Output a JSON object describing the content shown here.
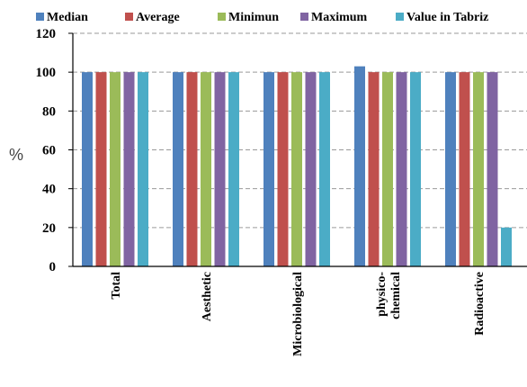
{
  "chart_data": {
    "type": "bar",
    "title": "",
    "ylabel": "%",
    "xlabel": "",
    "ylim": [
      0,
      120
    ],
    "yticks": [
      0,
      20,
      40,
      60,
      80,
      100,
      120
    ],
    "grid": true,
    "legend_position": "top",
    "categories": [
      "Total",
      "Aesthetic",
      "Microbiological",
      [
        "physico-",
        "chemical"
      ],
      "Radioactive"
    ],
    "series": [
      {
        "name": "Median",
        "color": "#4f81bd",
        "values": [
          100,
          100,
          100,
          103,
          100
        ]
      },
      {
        "name": "Average",
        "color": "#c0504d",
        "values": [
          100,
          100,
          100,
          100,
          100
        ]
      },
      {
        "name": "Minimun",
        "color": "#9bbb59",
        "values": [
          100,
          100,
          100,
          100,
          100
        ]
      },
      {
        "name": "Maximum",
        "color": "#8064a2",
        "values": [
          100,
          100,
          100,
          100,
          100
        ]
      },
      {
        "name": "Value in Tabriz",
        "color": "#4bacc6",
        "values": [
          100,
          100,
          100,
          100,
          20
        ]
      }
    ]
  }
}
